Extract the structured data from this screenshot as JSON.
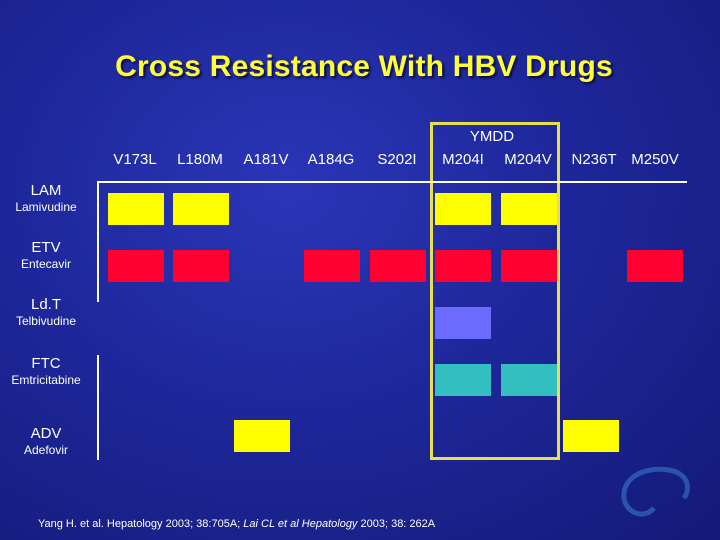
{
  "slide": {
    "title": "Cross Resistance With HBV Drugs"
  },
  "group_label": "YMDD",
  "mutations": [
    "V173L",
    "L180M",
    "A181V",
    "A184G",
    "S202I",
    "M204I",
    "M204V",
    "N236T",
    "M250V"
  ],
  "drugs": [
    {
      "abbr": "LAM",
      "name": "Lamivudine"
    },
    {
      "abbr": "ETV",
      "name": "Entecavir"
    },
    {
      "abbr": "Ld.T",
      "name": "Telbivudine"
    },
    {
      "abbr": "FTC",
      "name": "Emtricitabine"
    },
    {
      "abbr": "ADV",
      "name": "Adefovir"
    }
  ],
  "resistance": [
    {
      "drug": "LAM",
      "color": "#ffff00",
      "mutations": [
        "V173L",
        "L180M",
        "M204I",
        "M204V"
      ]
    },
    {
      "drug": "ETV",
      "color": "#ff0030",
      "mutations": [
        "V173L",
        "L180M",
        "A184G",
        "S202I",
        "M204I",
        "M204V",
        "M250V"
      ]
    },
    {
      "drug": "Ld.T",
      "color": "#6b6bff",
      "mutations": [
        "M204I"
      ]
    },
    {
      "drug": "FTC",
      "color": "#33bfbf",
      "mutations": [
        "M204I",
        "M204V"
      ]
    },
    {
      "drug": "ADV",
      "color": "#ffff00",
      "mutations": [
        "A181V",
        "N236T"
      ]
    }
  ],
  "citation": {
    "part1": "Yang H. et al. Hepatology 2003; 38:705A; ",
    "part2": "Lai CL et al Hepatology",
    "part3": " 2003; 38: 262A"
  }
}
